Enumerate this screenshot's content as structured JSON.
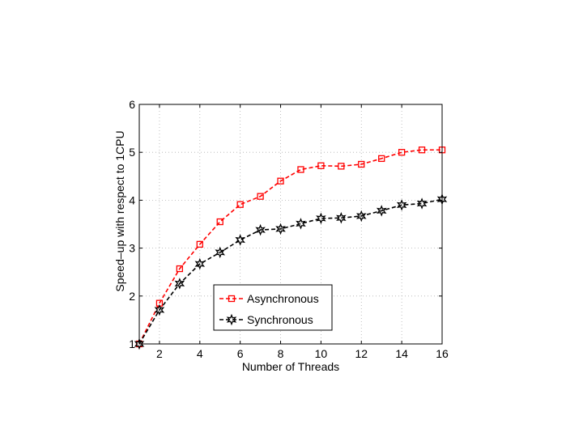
{
  "chart_data": {
    "type": "line",
    "xlabel": "Number of Threads",
    "ylabel": "Speed–up with respect to 1CPU",
    "xlim": [
      1,
      16
    ],
    "ylim": [
      1,
      6
    ],
    "xticks": [
      2,
      4,
      6,
      8,
      10,
      12,
      14,
      16
    ],
    "yticks": [
      1,
      2,
      3,
      4,
      5,
      6
    ],
    "x": [
      1,
      2,
      3,
      4,
      5,
      6,
      7,
      8,
      9,
      10,
      11,
      12,
      13,
      14,
      15,
      16
    ],
    "grid": true,
    "legend": {
      "position": "lower-center"
    },
    "series": [
      {
        "name": "Asynchronous",
        "color": "#ff0000",
        "marker": "square",
        "line_style": "dashed",
        "values": [
          1.0,
          1.85,
          2.57,
          3.08,
          3.55,
          3.91,
          4.08,
          4.4,
          4.64,
          4.72,
          4.71,
          4.75,
          4.87,
          5.0,
          5.05,
          5.05
        ]
      },
      {
        "name": "Synchronous",
        "color": "#000000",
        "marker": "hexagram",
        "line_style": "dashed",
        "values": [
          1.0,
          1.71,
          2.26,
          2.67,
          2.91,
          3.17,
          3.38,
          3.4,
          3.51,
          3.62,
          3.63,
          3.67,
          3.78,
          3.9,
          3.93,
          4.02
        ]
      }
    ]
  }
}
